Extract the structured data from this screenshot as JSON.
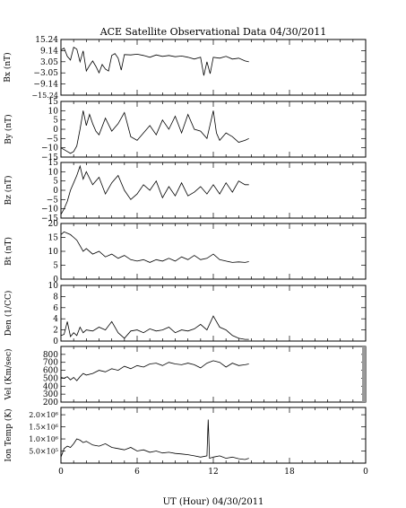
{
  "title": "ACE Satellite Observational Data   04/30/2011",
  "x_axis": {
    "label": "UT (Hour)   04/30/2011",
    "range": [
      0,
      24
    ],
    "ticks": [
      0,
      6,
      12,
      18,
      0
    ],
    "tick_values": [
      0,
      6,
      12,
      18,
      24
    ]
  },
  "chart_data": [
    {
      "type": "line",
      "ylabel": "Bx (nT)",
      "ylim": [
        -15.24,
        15.24
      ],
      "yticks": [
        15.24,
        9.14,
        3.05,
        -3.05,
        -9.14,
        -15.24
      ],
      "ytick_labels": [
        "15.24",
        "9.14",
        "3.05",
        "−3.05",
        "−9.14",
        "−15.24"
      ],
      "x": [
        0,
        0.25,
        0.5,
        0.75,
        1.0,
        1.25,
        1.5,
        1.75,
        2.0,
        2.25,
        2.5,
        2.75,
        3.0,
        3.25,
        3.5,
        3.75,
        4.0,
        4.25,
        4.5,
        4.75,
        5.0,
        5.5,
        6.0,
        6.5,
        7.0,
        7.5,
        8.0,
        8.5,
        9.0,
        9.5,
        10.0,
        10.5,
        11.0,
        11.25,
        11.5,
        11.75,
        12.0,
        12.5,
        13.0,
        13.5,
        14.0,
        14.5,
        14.8
      ],
      "values": [
        9.5,
        10.5,
        6.0,
        4.0,
        11.0,
        10.0,
        3.0,
        9.0,
        -2.0,
        1.0,
        3.5,
        0.5,
        -3.0,
        1.5,
        -1.0,
        -2.0,
        6.5,
        7.5,
        5.0,
        -1.5,
        7.0,
        6.8,
        7.2,
        6.5,
        5.5,
        6.8,
        6.0,
        6.5,
        5.8,
        6.2,
        5.5,
        4.5,
        5.5,
        -4.5,
        3.0,
        -3.5,
        5.5,
        5.0,
        6.0,
        4.5,
        5.0,
        3.5,
        3.0
      ]
    },
    {
      "type": "line",
      "ylabel": "By (nT)",
      "ylim": [
        -15,
        15
      ],
      "yticks": [
        15,
        10,
        5,
        0,
        -5,
        -10,
        -15
      ],
      "ytick_labels": [
        "15",
        "10",
        "5",
        "0",
        "−5",
        "−10",
        "−15"
      ],
      "x": [
        0,
        0.25,
        0.5,
        0.75,
        1.0,
        1.25,
        1.5,
        1.75,
        2.0,
        2.25,
        2.5,
        2.75,
        3.0,
        3.5,
        4.0,
        4.5,
        5.0,
        5.5,
        6.0,
        6.5,
        7.0,
        7.5,
        8.0,
        8.5,
        9.0,
        9.5,
        10.0,
        10.5,
        11.0,
        11.5,
        12.0,
        12.25,
        12.5,
        13.0,
        13.5,
        14.0,
        14.5,
        14.8
      ],
      "values": [
        -10,
        -11,
        -12,
        -13,
        -12,
        -9,
        0,
        10,
        2,
        8,
        3,
        -1,
        -3,
        6,
        -1,
        3,
        9,
        -4,
        -6,
        -2,
        2,
        -3,
        5,
        0,
        7,
        -2,
        8,
        0,
        -1,
        -5,
        10,
        -2,
        -6,
        -2,
        -4,
        -7,
        -6,
        -5
      ]
    },
    {
      "type": "line",
      "ylabel": "Bz (nT)",
      "ylim": [
        -15,
        15
      ],
      "yticks": [
        15,
        10,
        5,
        0,
        -5,
        -10,
        -15
      ],
      "ytick_labels": [
        "15",
        "10",
        "5",
        "0",
        "−5",
        "−10",
        "−15"
      ],
      "x": [
        0,
        0.25,
        0.5,
        0.75,
        1.0,
        1.25,
        1.5,
        1.75,
        2.0,
        2.5,
        3.0,
        3.5,
        4.0,
        4.5,
        5.0,
        5.5,
        6.0,
        6.5,
        7.0,
        7.5,
        8.0,
        8.5,
        9.0,
        9.5,
        10.0,
        10.5,
        11.0,
        11.5,
        12.0,
        12.5,
        13.0,
        13.5,
        14.0,
        14.5,
        14.8
      ],
      "values": [
        -13,
        -10,
        -6,
        0,
        4,
        8,
        13,
        6,
        10,
        3,
        7,
        -2,
        4,
        8,
        0,
        -5,
        -2,
        3,
        0,
        5,
        -4,
        2,
        -3,
        4,
        -3,
        -1,
        2,
        -2,
        3,
        -2,
        4,
        -1,
        5,
        3,
        3
      ]
    },
    {
      "type": "line",
      "ylabel": "Bt (nT)",
      "ylim": [
        0,
        20
      ],
      "yticks": [
        20,
        15,
        10,
        5,
        0
      ],
      "ytick_labels": [
        "20",
        "15",
        "10",
        "5",
        "0"
      ],
      "x": [
        0,
        0.25,
        0.5,
        0.75,
        1.0,
        1.25,
        1.5,
        1.75,
        2.0,
        2.5,
        3.0,
        3.5,
        4.0,
        4.5,
        5.0,
        5.5,
        6.0,
        6.5,
        7.0,
        7.5,
        8.0,
        8.5,
        9.0,
        9.5,
        10.0,
        10.5,
        11.0,
        11.5,
        12.0,
        12.5,
        13.0,
        13.5,
        14.0,
        14.5,
        14.8
      ],
      "values": [
        16,
        17,
        16.5,
        16,
        15,
        14,
        12,
        10,
        11,
        9,
        10,
        8,
        9,
        7.5,
        8.5,
        7,
        6.5,
        7,
        6,
        7,
        6.5,
        7.5,
        6.5,
        8,
        7,
        8.5,
        7,
        7.5,
        9,
        7,
        6.5,
        6,
        6.2,
        6,
        6.3
      ]
    },
    {
      "type": "line",
      "ylabel": "Den (1/CC)",
      "ylim": [
        0,
        10
      ],
      "yticks": [
        10,
        8,
        6,
        4,
        2,
        0
      ],
      "ytick_labels": [
        "10",
        "8",
        "6",
        "4",
        "2",
        "0"
      ],
      "x": [
        0,
        0.25,
        0.5,
        0.75,
        1.0,
        1.25,
        1.5,
        1.75,
        2.0,
        2.5,
        3.0,
        3.5,
        4.0,
        4.5,
        5.0,
        5.5,
        6.0,
        6.5,
        7.0,
        7.5,
        8.0,
        8.5,
        9.0,
        9.5,
        10.0,
        10.5,
        11.0,
        11.5,
        12.0,
        12.5,
        13.0,
        13.5,
        14.0,
        14.5,
        14.8
      ],
      "values": [
        1.0,
        1.2,
        3.5,
        0.8,
        1.5,
        1.0,
        2.5,
        1.5,
        2.0,
        1.8,
        2.5,
        2.0,
        3.5,
        1.5,
        0.5,
        1.8,
        2.0,
        1.5,
        2.2,
        1.8,
        2.0,
        2.5,
        1.5,
        2.0,
        1.8,
        2.2,
        3.0,
        2.0,
        4.5,
        2.5,
        2.0,
        1.0,
        0.5,
        0.3,
        0.3
      ]
    },
    {
      "type": "line",
      "ylabel": "Vel (Km/sec)",
      "ylim": [
        200,
        900
      ],
      "yticks": [
        800,
        700,
        600,
        500,
        400,
        300,
        200
      ],
      "ytick_labels": [
        "800",
        "700",
        "600",
        "500",
        "400",
        "300",
        "200"
      ],
      "x": [
        0,
        0.25,
        0.5,
        0.75,
        1.0,
        1.25,
        1.5,
        1.75,
        2.0,
        2.5,
        3.0,
        3.5,
        4.0,
        4.5,
        5.0,
        5.5,
        6.0,
        6.5,
        7.0,
        7.5,
        8.0,
        8.5,
        9.0,
        9.5,
        10.0,
        10.5,
        11.0,
        11.5,
        12.0,
        12.5,
        13.0,
        13.5,
        14.0,
        14.5,
        14.8
      ],
      "values": [
        510,
        500,
        520,
        480,
        510,
        470,
        520,
        560,
        540,
        560,
        600,
        580,
        620,
        600,
        650,
        620,
        660,
        640,
        680,
        690,
        660,
        700,
        680,
        670,
        690,
        670,
        630,
        690,
        720,
        700,
        640,
        690,
        660,
        670,
        680
      ]
    },
    {
      "type": "line",
      "ylabel": "Ion Temp (K)",
      "ylim": [
        0,
        2300000
      ],
      "yticks": [
        2000000,
        1500000,
        1000000,
        500000
      ],
      "ytick_labels": [
        "2.0×10⁶",
        "1.5×10⁶",
        "1.0×10⁶",
        "5.0×10⁵"
      ],
      "x": [
        0,
        0.25,
        0.5,
        0.75,
        1.0,
        1.25,
        1.5,
        1.75,
        2.0,
        2.5,
        3.0,
        3.5,
        4.0,
        4.5,
        5.0,
        5.5,
        6.0,
        6.5,
        7.0,
        7.5,
        8.0,
        8.5,
        9.0,
        9.5,
        10.0,
        10.5,
        11.0,
        11.5,
        11.6,
        11.7,
        12.0,
        12.5,
        13.0,
        13.5,
        14.0,
        14.5,
        14.8
      ],
      "values": [
        250000,
        600000,
        700000,
        650000,
        800000,
        1000000,
        950000,
        850000,
        900000,
        750000,
        700000,
        800000,
        650000,
        600000,
        550000,
        650000,
        500000,
        550000,
        450000,
        500000,
        420000,
        450000,
        400000,
        380000,
        350000,
        300000,
        250000,
        300000,
        1800000,
        200000,
        250000,
        300000,
        200000,
        250000,
        180000,
        150000,
        200000
      ]
    }
  ]
}
